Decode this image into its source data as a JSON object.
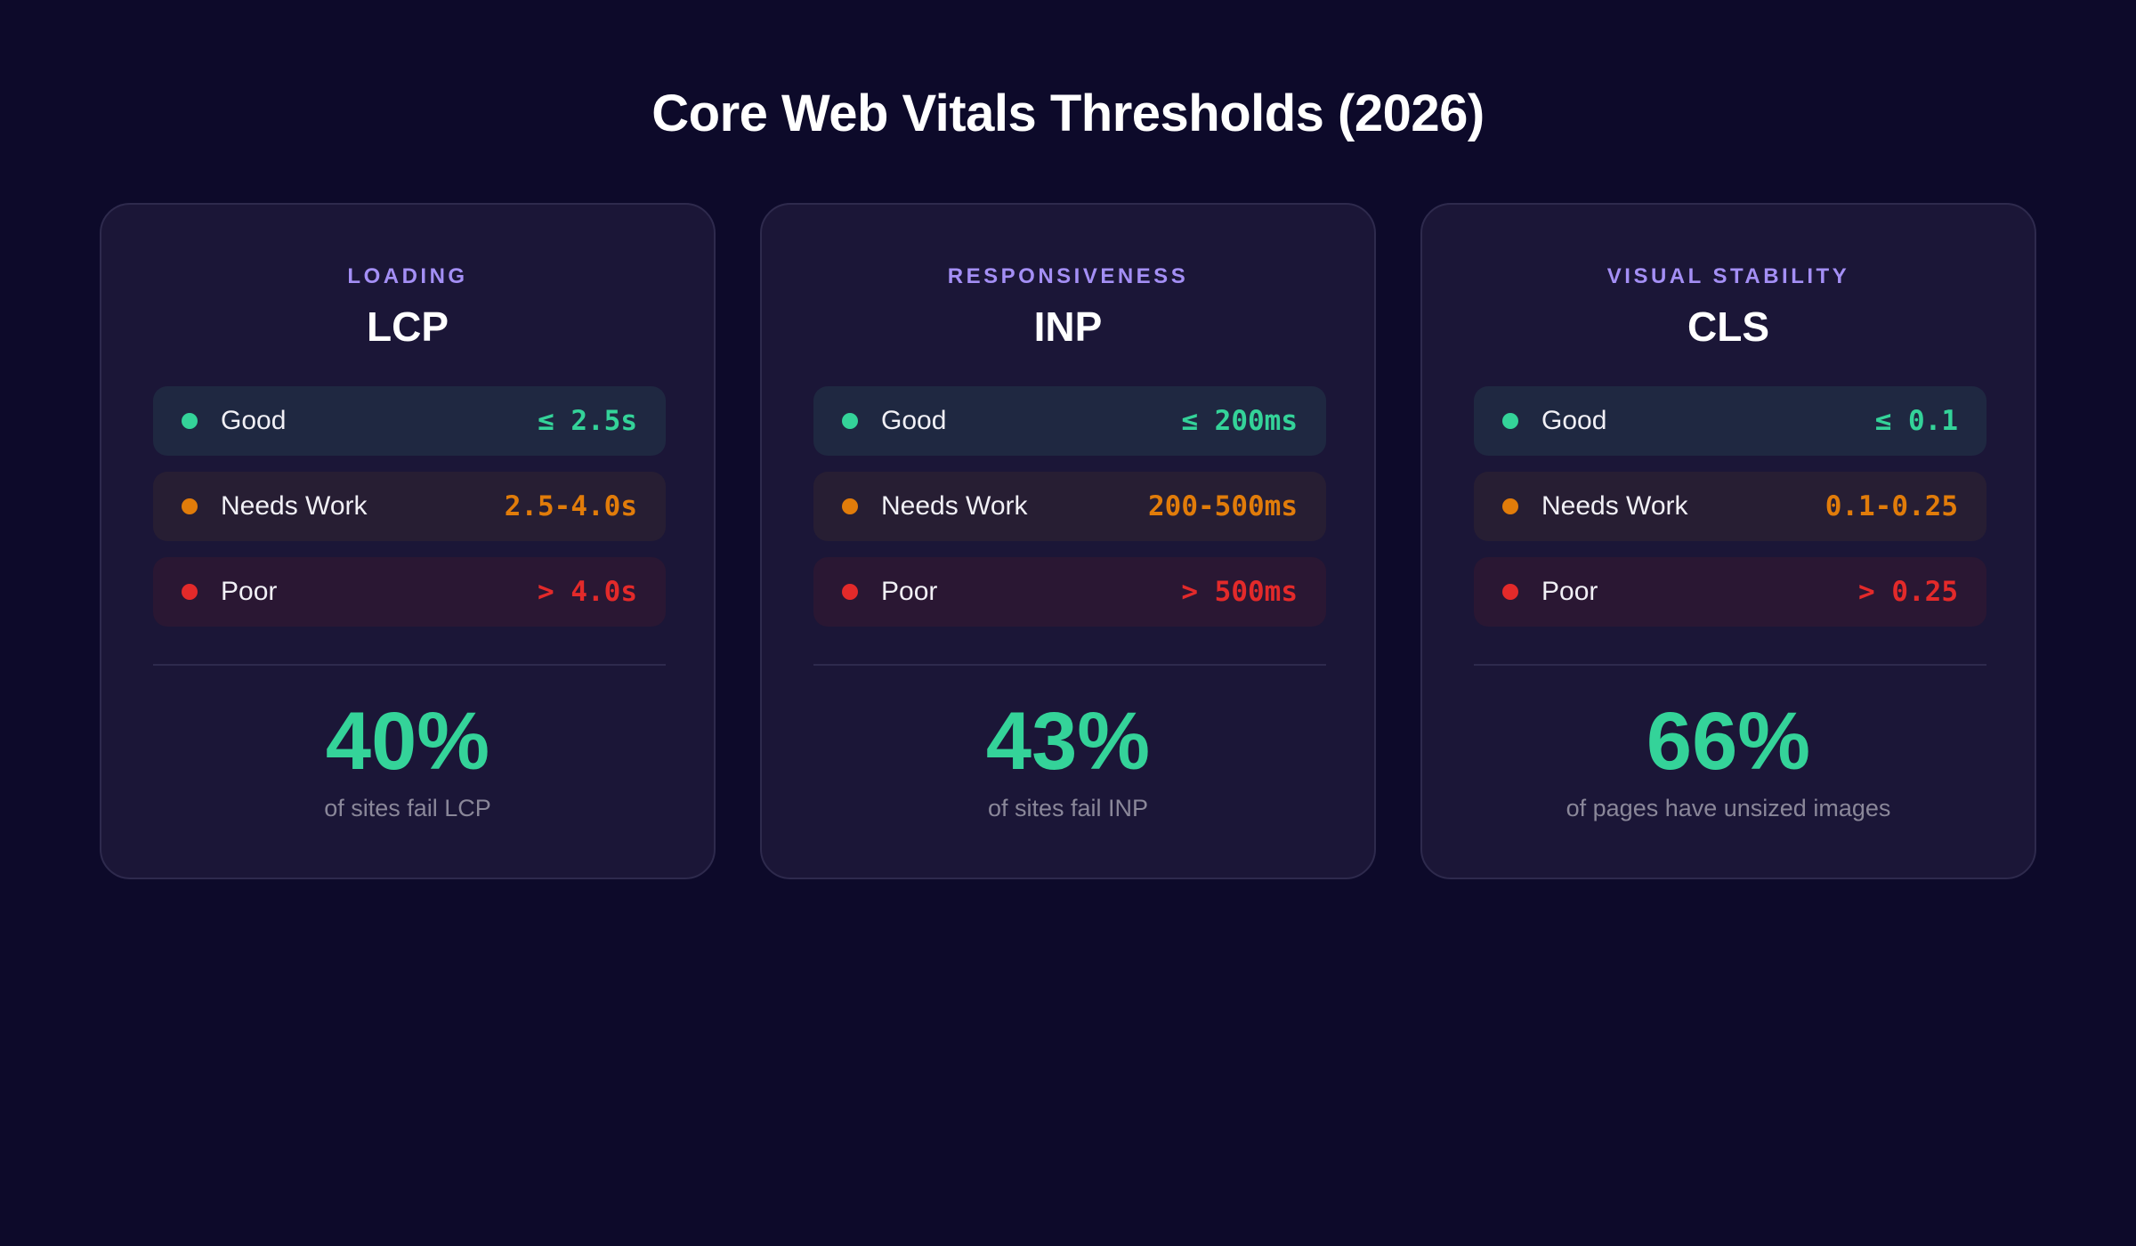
{
  "page": {
    "title": "Core Web Vitals Thresholds (2026)"
  },
  "colors": {
    "background": "#0d0a2a",
    "card_background": "#1b1637",
    "category_accent": "#a48ff5",
    "good": "#34d399",
    "needs_work": "#e17c0a",
    "poor": "#e32a2a",
    "caption": "#8a8799"
  },
  "cards": [
    {
      "category": "LOADING",
      "metric": "LCP",
      "thresholds": [
        {
          "status": "good",
          "label": "Good",
          "value": "≤ 2.5s"
        },
        {
          "status": "needs",
          "label": "Needs Work",
          "value": "2.5-4.0s"
        },
        {
          "status": "poor",
          "label": "Poor",
          "value": "> 4.0s"
        }
      ],
      "stat": "40%",
      "stat_caption": "of sites fail LCP"
    },
    {
      "category": "RESPONSIVENESS",
      "metric": "INP",
      "thresholds": [
        {
          "status": "good",
          "label": "Good",
          "value": "≤ 200ms"
        },
        {
          "status": "needs",
          "label": "Needs Work",
          "value": "200-500ms"
        },
        {
          "status": "poor",
          "label": "Poor",
          "value": "> 500ms"
        }
      ],
      "stat": "43%",
      "stat_caption": "of sites fail INP"
    },
    {
      "category": "VISUAL STABILITY",
      "metric": "CLS",
      "thresholds": [
        {
          "status": "good",
          "label": "Good",
          "value": "≤ 0.1"
        },
        {
          "status": "needs",
          "label": "Needs Work",
          "value": "0.1-0.25"
        },
        {
          "status": "poor",
          "label": "Poor",
          "value": "> 0.25"
        }
      ],
      "stat": "66%",
      "stat_caption": "of pages have unsized images"
    }
  ]
}
